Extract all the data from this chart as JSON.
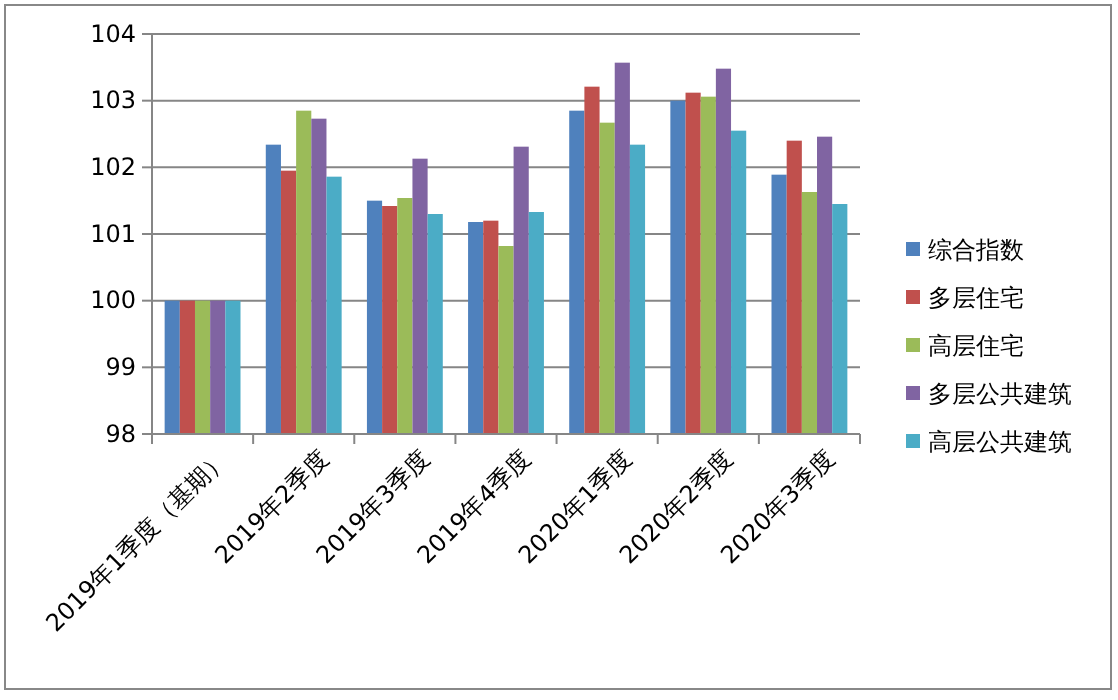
{
  "chart_data": {
    "type": "bar",
    "categories": [
      "2019年1季度（基期）",
      "2019年2季度",
      "2019年3季度",
      "2019年4季度",
      "2020年1季度",
      "2020年2季度",
      "2020年3季度"
    ],
    "series": [
      {
        "name": "综合指数",
        "color": "#4f81bd",
        "values": [
          100,
          102.34,
          101.5,
          101.18,
          102.85,
          103.0,
          101.89
        ]
      },
      {
        "name": "多层住宅",
        "color": "#c0504d",
        "values": [
          100,
          101.95,
          101.42,
          101.2,
          103.21,
          103.12,
          102.4
        ]
      },
      {
        "name": "高层住宅",
        "color": "#9bbb59",
        "values": [
          100,
          102.85,
          101.54,
          100.82,
          102.67,
          103.06,
          101.63
        ]
      },
      {
        "name": "多层公共建筑",
        "color": "#8064a2",
        "values": [
          100,
          102.73,
          102.13,
          102.31,
          103.57,
          103.48,
          102.46
        ]
      },
      {
        "name": "高层公共建筑",
        "color": "#4bacc6",
        "values": [
          100,
          101.86,
          101.3,
          101.33,
          102.34,
          102.55,
          101.45
        ]
      }
    ],
    "ylim": [
      98,
      104
    ],
    "yticks": [
      98,
      99,
      100,
      101,
      102,
      103,
      104
    ],
    "grid": "y",
    "legend": "right"
  }
}
